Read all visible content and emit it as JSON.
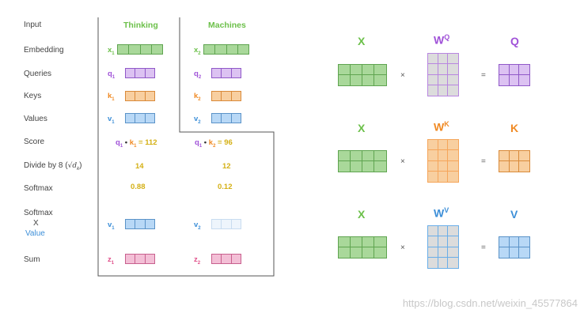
{
  "row_labels": {
    "input": "Input",
    "embedding": "Embedding",
    "queries": "Queries",
    "keys": "Keys",
    "values": "Values",
    "score": "Score",
    "divide_prefix": "Divide by 8 (",
    "divide_sqrt": "√d",
    "divide_sub": "k",
    "divide_suffix": ")",
    "softmax": "Softmax",
    "softmax_x_1": "Softmax",
    "softmax_x_2": "X",
    "softmax_x_3": "Value",
    "sum": "Sum"
  },
  "words": [
    {
      "header": "Thinking",
      "x": "x",
      "x_sub": "1",
      "q": "q",
      "q_sub": "1",
      "k": "k",
      "k_sub": "1",
      "v": "v",
      "v_sub": "1",
      "score_q": "q",
      "score_q_sub": "1",
      "score_dot": " • ",
      "score_k": "k",
      "score_k_sub": "1",
      "score_eq": " = 112",
      "divided": "14",
      "softmax": "0.88",
      "v2": "v",
      "v2_sub": "1",
      "z": "z",
      "z_sub": "1"
    },
    {
      "header": "Machines",
      "x": "x",
      "x_sub": "2",
      "q": "q",
      "q_sub": "2",
      "k": "k",
      "k_sub": "2",
      "v": "v",
      "v_sub": "2",
      "score_q": "q",
      "score_q_sub": "1",
      "score_dot": " • ",
      "score_k": "k",
      "score_k_sub": "2",
      "score_eq": " = 96",
      "divided": "12",
      "softmax": "0.12",
      "v2": "v",
      "v2_sub": "2",
      "z": "z",
      "z_sub": "2"
    }
  ],
  "matrix_rows": [
    {
      "input": "X",
      "weight": "W",
      "weight_sup": "Q",
      "times": "×",
      "equals": "=",
      "output": "Q",
      "weight_color": "#b886e0",
      "output_color": "#a052d8"
    },
    {
      "input": "X",
      "weight": "W",
      "weight_sup": "K",
      "times": "×",
      "equals": "=",
      "output": "K",
      "weight_color": "#f5a55a",
      "output_color": "#f08a24"
    },
    {
      "input": "X",
      "weight": "W",
      "weight_sup": "V",
      "times": "×",
      "equals": "=",
      "output": "V",
      "weight_color": "#6aaee8",
      "output_color": "#3d8fd8"
    }
  ],
  "colors": {
    "green": "#6cc04a",
    "green_fill": "#a9d89a",
    "green_border": "#5fa450",
    "purple": "#a052d8",
    "purple_fill": "#dcc2f2",
    "purple_border": "#9058c8",
    "orange": "#f08a24",
    "orange_fill": "#f8cfa0",
    "orange_border": "#d98a3a",
    "blue": "#3d8fd8",
    "blue_fill": "#b8d8f6",
    "blue_border": "#5b93c8",
    "pink": "#e0508a",
    "pink_fill": "#f3bfd6",
    "pink_border": "#c8608e",
    "yellow": "#d4b015",
    "grey_fill": "#dcdcdc"
  },
  "watermark": "https://blog.csdn.net/weixin_45577864"
}
